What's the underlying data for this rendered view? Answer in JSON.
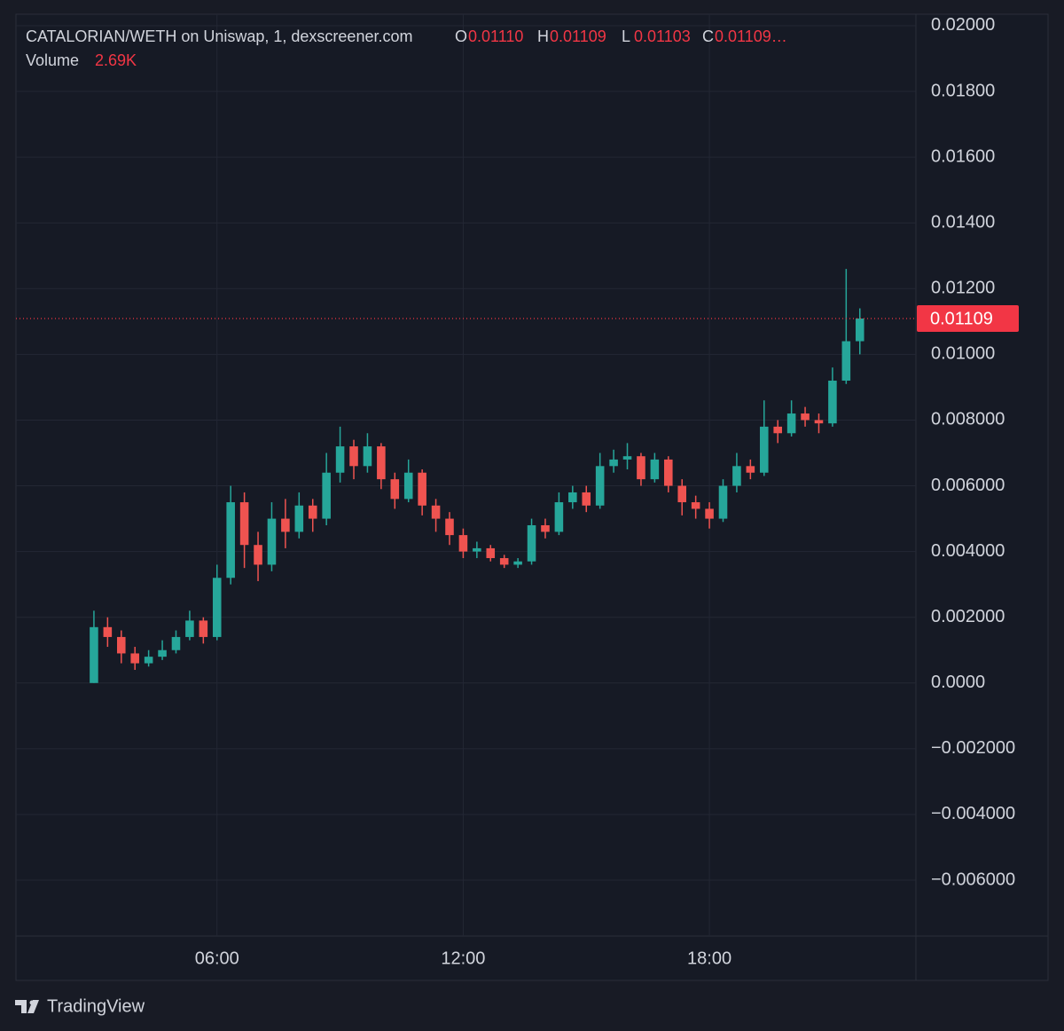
{
  "chart_data": {
    "type": "candlestick",
    "title": "CATALORIAN/WETH on Uniswap, 1, dexscreener.com",
    "ohlc_labels": [
      "O",
      "H",
      "L",
      "C"
    ],
    "ohlc_values": [
      "0.01110",
      "0.01109",
      "0.01103",
      "0.01109…"
    ],
    "volume_label": "Volume",
    "volume_value": "2.69K",
    "x": [
      "03:00",
      "03:20",
      "03:40",
      "04:00",
      "04:20",
      "04:40",
      "05:00",
      "05:20",
      "05:40",
      "06:00",
      "06:20",
      "06:40",
      "07:00",
      "07:20",
      "07:40",
      "08:00",
      "08:20",
      "08:40",
      "09:00",
      "09:20",
      "09:40",
      "10:00",
      "10:20",
      "10:40",
      "11:00",
      "11:20",
      "11:40",
      "12:00",
      "12:20",
      "12:40",
      "13:00",
      "13:20",
      "13:40",
      "14:00",
      "14:20",
      "14:40",
      "15:00",
      "15:20",
      "15:40",
      "16:00",
      "16:20",
      "16:40",
      "17:00",
      "17:20",
      "17:40",
      "18:00",
      "18:20",
      "18:40",
      "19:00",
      "19:20",
      "19:40",
      "20:00",
      "20:20",
      "20:40",
      "21:00",
      "21:20",
      "21:40"
    ],
    "open": [
      0,
      0.0017,
      0.0014,
      0.0009,
      0.0006,
      0.0008,
      0.001,
      0.0014,
      0.0019,
      0.0014,
      0.0032,
      0.0055,
      0.0042,
      0.0036,
      0.005,
      0.0046,
      0.0054,
      0.005,
      0.0064,
      0.0072,
      0.0066,
      0.0072,
      0.0062,
      0.0056,
      0.0064,
      0.0054,
      0.005,
      0.0045,
      0.004,
      0.0041,
      0.0038,
      0.0036,
      0.0037,
      0.0048,
      0.0046,
      0.0055,
      0.0058,
      0.0054,
      0.0066,
      0.0068,
      0.0069,
      0.0062,
      0.0068,
      0.006,
      0.0055,
      0.0053,
      0.005,
      0.006,
      0.0066,
      0.0064,
      0.0078,
      0.0076,
      0.0082,
      0.008,
      0.0079,
      0.0092,
      0.0104
    ],
    "high": [
      0.0022,
      0.002,
      0.0016,
      0.0011,
      0.001,
      0.0013,
      0.0016,
      0.0022,
      0.002,
      0.0036,
      0.006,
      0.0058,
      0.0046,
      0.0055,
      0.0056,
      0.0058,
      0.0056,
      0.007,
      0.0078,
      0.0074,
      0.0076,
      0.0073,
      0.0064,
      0.0068,
      0.0065,
      0.0056,
      0.0052,
      0.0047,
      0.0043,
      0.0042,
      0.0039,
      0.0038,
      0.005,
      0.005,
      0.0058,
      0.006,
      0.006,
      0.007,
      0.0071,
      0.0073,
      0.007,
      0.007,
      0.0069,
      0.0062,
      0.0057,
      0.0055,
      0.0062,
      0.007,
      0.0068,
      0.0086,
      0.008,
      0.0086,
      0.0084,
      0.0082,
      0.0096,
      0.0126,
      0.0114
    ],
    "low": [
      0,
      0.0011,
      0.0006,
      0.0004,
      0.0005,
      0.0007,
      0.0009,
      0.0013,
      0.0012,
      0.0013,
      0.003,
      0.0035,
      0.0031,
      0.0034,
      0.0041,
      0.0044,
      0.0046,
      0.0048,
      0.0061,
      0.0062,
      0.0064,
      0.0059,
      0.0053,
      0.0055,
      0.0051,
      0.0046,
      0.0042,
      0.0038,
      0.0038,
      0.0037,
      0.0035,
      0.0035,
      0.0036,
      0.0044,
      0.0045,
      0.0053,
      0.0052,
      0.0053,
      0.0064,
      0.0065,
      0.006,
      0.0061,
      0.0058,
      0.0051,
      0.005,
      0.0047,
      0.0049,
      0.0058,
      0.0062,
      0.0063,
      0.0073,
      0.0075,
      0.0078,
      0.0076,
      0.0078,
      0.0091,
      0.01
    ],
    "close": [
      0.0017,
      0.0014,
      0.0009,
      0.0006,
      0.0008,
      0.001,
      0.0014,
      0.0019,
      0.0014,
      0.0032,
      0.0055,
      0.0042,
      0.0036,
      0.005,
      0.0046,
      0.0054,
      0.005,
      0.0064,
      0.0072,
      0.0066,
      0.0072,
      0.0062,
      0.0056,
      0.0064,
      0.0054,
      0.005,
      0.0045,
      0.004,
      0.0041,
      0.0038,
      0.0036,
      0.0037,
      0.0048,
      0.0046,
      0.0055,
      0.0058,
      0.0054,
      0.0066,
      0.0068,
      0.0069,
      0.0062,
      0.0068,
      0.006,
      0.0055,
      0.0053,
      0.005,
      0.006,
      0.0066,
      0.0064,
      0.0078,
      0.0076,
      0.0082,
      0.008,
      0.0079,
      0.0092,
      0.0104,
      0.01109
    ],
    "up_color": "#26a69a",
    "down_color": "#ef5350",
    "last_price": 0.01109,
    "last_price_color": "#f23645",
    "xlim": [
      "01:06",
      "23:02"
    ],
    "xticks": [
      "06:00",
      "12:00",
      "18:00"
    ],
    "ylim": [
      -0.0077,
      0.02035
    ],
    "yticks": [
      {
        "value": 0.02,
        "label": "0.02000"
      },
      {
        "value": 0.018,
        "label": "0.01800"
      },
      {
        "value": 0.016,
        "label": "0.01600"
      },
      {
        "value": 0.014,
        "label": "0.01400"
      },
      {
        "value": 0.012,
        "label": "0.01200"
      },
      {
        "value": 0.01,
        "label": "0.01000"
      },
      {
        "value": 0.008,
        "label": "0.008000"
      },
      {
        "value": 0.006,
        "label": "0.006000"
      },
      {
        "value": 0.004,
        "label": "0.004000"
      },
      {
        "value": 0.002,
        "label": "0.002000"
      },
      {
        "value": 0,
        "label": "0.0000"
      },
      {
        "value": -0.002,
        "label": "−0.002000"
      },
      {
        "value": -0.004,
        "label": "−0.004000"
      },
      {
        "value": -0.006,
        "label": "−0.006000"
      }
    ],
    "grid": true
  },
  "branding": "TradingView"
}
